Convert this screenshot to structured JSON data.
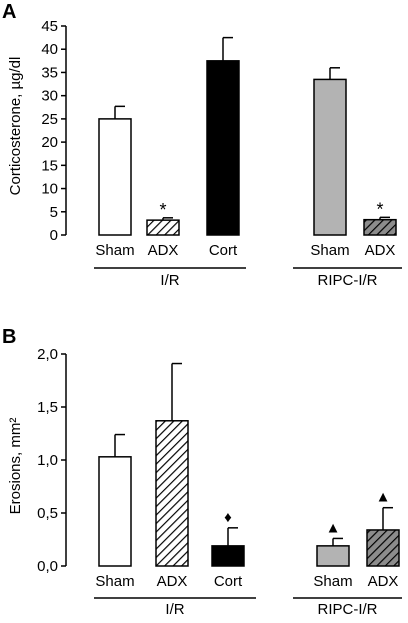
{
  "colors": {
    "white_bar": "#ffffff",
    "hatched_bar": "#ffffff",
    "black_bar": "#000000",
    "grey_bar": "#b3b3b3",
    "grey_hatched_bar": "#8c8c8c",
    "axis": "#000000"
  },
  "chart_data": [
    {
      "type": "bar",
      "panel_label": "A",
      "ylabel": "Corticosterone, µg/dl",
      "ylim": [
        0,
        45
      ],
      "yticks": [
        0,
        5,
        10,
        15,
        20,
        25,
        30,
        35,
        40,
        45
      ],
      "ytick_labels": [
        "0",
        "5",
        "10",
        "15",
        "20",
        "25",
        "30",
        "35",
        "40",
        "45"
      ],
      "categories": [
        "Sham",
        "ADX",
        "Cort",
        "Sham",
        "ADX"
      ],
      "values": [
        25,
        3.2,
        37.5,
        33.5,
        3.3
      ],
      "errors": [
        2.7,
        0.5,
        5.0,
        2.5,
        0.5
      ],
      "fills": [
        "white",
        "hatched",
        "black",
        "grey",
        "grey-hatched"
      ],
      "markers": [
        "",
        "*",
        "",
        "",
        "*"
      ],
      "groups": [
        {
          "label": "I/R",
          "categories": [
            0,
            1,
            2
          ]
        },
        {
          "label": "RIPC-I/R",
          "categories": [
            3,
            4
          ]
        }
      ]
    },
    {
      "type": "bar",
      "panel_label": "B",
      "ylabel": "Erosions, mm²",
      "ylim": [
        0,
        2.0
      ],
      "yticks": [
        0,
        0.5,
        1.0,
        1.5,
        2.0
      ],
      "ytick_labels": [
        "0,0",
        "0,5",
        "1,0",
        "1,5",
        "2,0"
      ],
      "categories": [
        "Sham",
        "ADX",
        "Cort",
        "Sham",
        "ADX"
      ],
      "values": [
        1.03,
        1.37,
        0.19,
        0.19,
        0.34
      ],
      "errors": [
        0.21,
        0.54,
        0.17,
        0.07,
        0.21
      ],
      "fills": [
        "white",
        "hatched",
        "black",
        "grey",
        "grey-hatched"
      ],
      "markers": [
        "",
        "",
        "♦",
        "▲",
        "▲"
      ],
      "groups": [
        {
          "label": "I/R",
          "categories": [
            0,
            1,
            2
          ]
        },
        {
          "label": "RIPC-I/R",
          "categories": [
            3,
            4
          ]
        }
      ]
    }
  ]
}
